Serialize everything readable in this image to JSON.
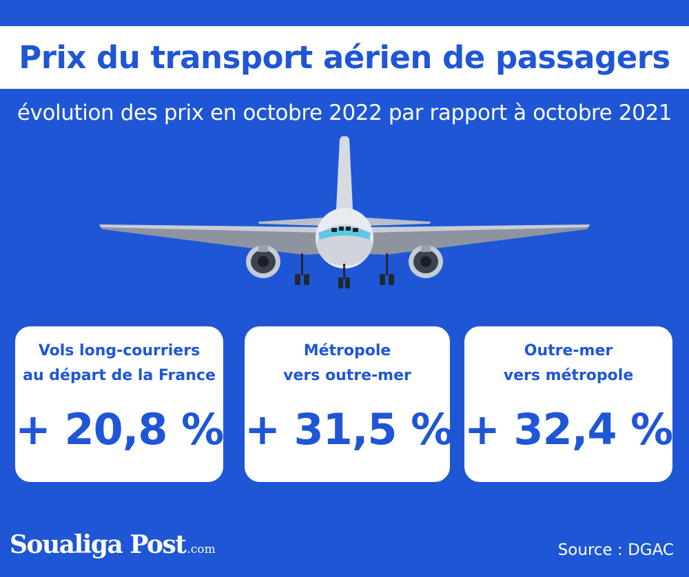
{
  "header": {
    "title": "Prix du transport aérien de passagers",
    "subtitle": "évolution des prix en octobre 2022 par rapport à octobre 2021"
  },
  "cards": [
    {
      "label_line1": "Vols long-courriers",
      "label_line2": "au départ de la France",
      "value": "+ 20,8 %"
    },
    {
      "label_line1": "Métropole",
      "label_line2": "vers outre-mer",
      "value": "+ 31,5 %"
    },
    {
      "label_line1": "Outre-mer",
      "label_line2": "vers métropole",
      "value": "+ 32,4 %"
    }
  ],
  "footer": {
    "logo_text": "Soualiga Post",
    "logo_suffix": ".com",
    "source": "Source : DGAC"
  },
  "colors": {
    "background": "#1e56d6",
    "accent": "#1e56d6",
    "card": "#ffffff"
  }
}
